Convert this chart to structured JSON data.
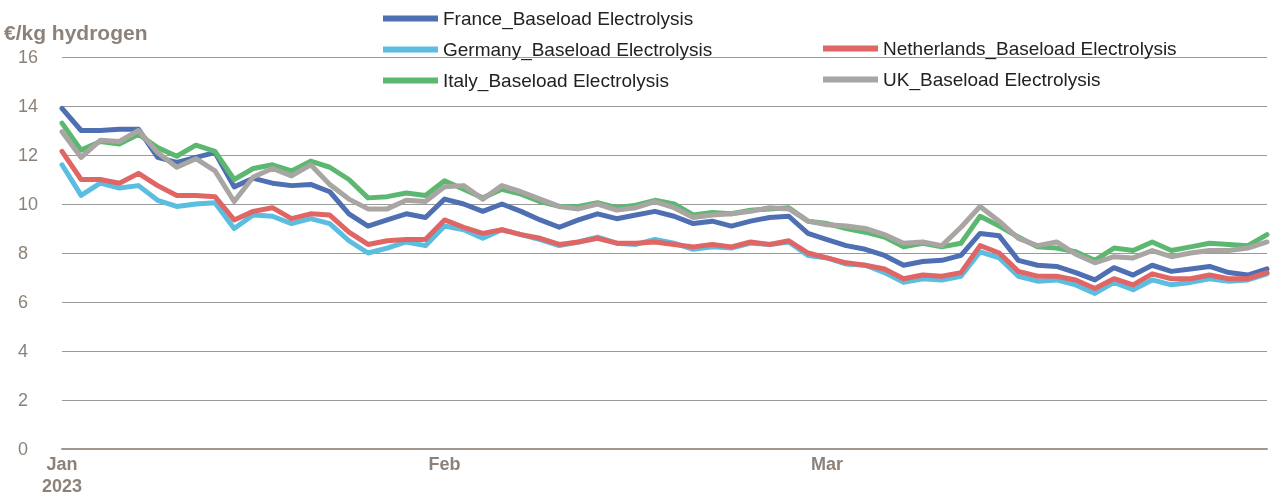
{
  "chart_data": {
    "type": "line",
    "ylabel": "€/kg hydrogen",
    "categories": [
      "Jan\n2023",
      null,
      null,
      null,
      null,
      null,
      null,
      null,
      null,
      null,
      null,
      null,
      null,
      null,
      null,
      null,
      null,
      null,
      null,
      null,
      "Feb",
      null,
      null,
      null,
      null,
      null,
      null,
      null,
      null,
      null,
      null,
      null,
      null,
      null,
      null,
      null,
      null,
      null,
      null,
      null,
      "Mar",
      null,
      null,
      null,
      null,
      null,
      null,
      null,
      null,
      null,
      null,
      null,
      null,
      null,
      null,
      null,
      null,
      null,
      null,
      null,
      null,
      null,
      null,
      null
    ],
    "series": [
      {
        "name": "France_Baseload Electrolysis",
        "color": "#4f6fb3",
        "values": [
          13.9,
          13.0,
          13.0,
          13.05,
          13.05,
          11.9,
          11.7,
          11.9,
          12.1,
          10.7,
          11.05,
          10.85,
          10.75,
          10.8,
          10.5,
          9.6,
          9.1,
          9.35,
          9.6,
          9.45,
          10.2,
          10.0,
          9.7,
          10.0,
          9.7,
          9.35,
          9.05,
          9.35,
          9.6,
          9.4,
          9.55,
          9.7,
          9.5,
          9.2,
          9.3,
          9.1,
          9.3,
          9.45,
          9.5,
          8.8,
          8.55,
          8.3,
          8.15,
          7.9,
          7.5,
          7.65,
          7.7,
          7.9,
          8.8,
          8.7,
          7.7,
          7.5,
          7.45,
          7.2,
          6.9,
          7.4,
          7.1,
          7.5,
          7.25,
          7.35,
          7.45,
          7.2,
          7.1,
          7.35
        ]
      },
      {
        "name": "Germany_Baseload Electrolysis",
        "color": "#5bbde0",
        "values": [
          11.6,
          10.35,
          10.85,
          10.65,
          10.75,
          10.15,
          9.9,
          10.0,
          10.05,
          9.0,
          9.55,
          9.5,
          9.2,
          9.4,
          9.2,
          8.5,
          8.0,
          8.2,
          8.45,
          8.3,
          9.1,
          8.95,
          8.6,
          8.95,
          8.75,
          8.55,
          8.3,
          8.45,
          8.65,
          8.4,
          8.35,
          8.55,
          8.4,
          8.15,
          8.25,
          8.2,
          8.4,
          8.35,
          8.45,
          7.9,
          7.8,
          7.55,
          7.5,
          7.2,
          6.8,
          6.95,
          6.9,
          7.05,
          8.05,
          7.8,
          7.05,
          6.85,
          6.9,
          6.7,
          6.35,
          6.8,
          6.5,
          6.9,
          6.7,
          6.8,
          6.95,
          6.85,
          6.9,
          7.15
        ]
      },
      {
        "name": "Netherlands_Baseload Electrolysis",
        "color": "#e06666",
        "values": [
          12.15,
          11.0,
          11.0,
          10.85,
          11.25,
          10.75,
          10.35,
          10.35,
          10.3,
          9.35,
          9.7,
          9.85,
          9.4,
          9.6,
          9.55,
          8.85,
          8.35,
          8.5,
          8.55,
          8.55,
          9.35,
          9.05,
          8.8,
          8.95,
          8.75,
          8.6,
          8.35,
          8.45,
          8.6,
          8.4,
          8.4,
          8.45,
          8.35,
          8.25,
          8.35,
          8.25,
          8.45,
          8.35,
          8.5,
          8.0,
          7.8,
          7.6,
          7.5,
          7.35,
          6.95,
          7.1,
          7.05,
          7.2,
          8.3,
          8.0,
          7.25,
          7.05,
          7.05,
          6.9,
          6.55,
          6.95,
          6.7,
          7.15,
          6.95,
          6.95,
          7.1,
          6.95,
          6.95,
          7.2
        ]
      },
      {
        "name": "Italy_Baseload Electrolysis",
        "color": "#5cb870",
        "values": [
          13.3,
          12.2,
          12.55,
          12.45,
          12.85,
          12.3,
          11.95,
          12.4,
          12.15,
          11.0,
          11.45,
          11.6,
          11.35,
          11.75,
          11.5,
          11.0,
          10.25,
          10.3,
          10.45,
          10.35,
          10.95,
          10.6,
          10.25,
          10.6,
          10.4,
          10.1,
          9.9,
          9.9,
          10.05,
          9.85,
          9.95,
          10.15,
          10.0,
          9.55,
          9.65,
          9.6,
          9.75,
          9.8,
          9.85,
          9.3,
          9.2,
          9.0,
          8.85,
          8.65,
          8.25,
          8.4,
          8.25,
          8.4,
          9.5,
          9.1,
          8.65,
          8.25,
          8.2,
          8.05,
          7.7,
          8.2,
          8.1,
          8.45,
          8.1,
          8.25,
          8.4,
          8.35,
          8.3,
          8.75
        ]
      },
      {
        "name": "UK_Baseload Electrolysis",
        "color": "#a8a5a2",
        "values": [
          12.95,
          11.9,
          12.6,
          12.55,
          13.0,
          12.1,
          11.5,
          11.85,
          11.35,
          10.1,
          11.1,
          11.45,
          11.15,
          11.6,
          10.8,
          10.2,
          9.8,
          9.8,
          10.15,
          10.1,
          10.7,
          10.75,
          10.2,
          10.75,
          10.5,
          10.2,
          9.9,
          9.8,
          10.0,
          9.75,
          9.85,
          10.1,
          9.85,
          9.45,
          9.55,
          9.6,
          9.7,
          9.85,
          9.8,
          9.3,
          9.15,
          9.1,
          9.0,
          8.75,
          8.4,
          8.45,
          8.3,
          9.05,
          9.9,
          9.3,
          8.6,
          8.3,
          8.45,
          7.95,
          7.6,
          7.85,
          7.8,
          8.1,
          7.85,
          8.0,
          8.1,
          8.1,
          8.2,
          8.45
        ]
      }
    ],
    "ylim": [
      0,
      16
    ],
    "yticks": [
      0,
      2,
      4,
      6,
      8,
      10,
      12,
      14,
      16
    ],
    "grid": "y",
    "legend": "top",
    "marker": "none",
    "line_style": "solid"
  }
}
